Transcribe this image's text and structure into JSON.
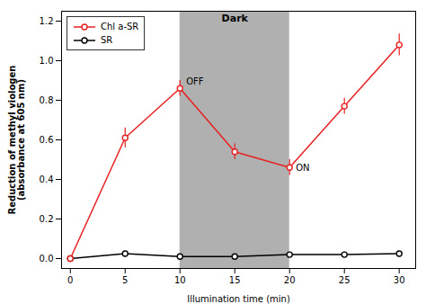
{
  "chart_data": {
    "type": "line",
    "x": [
      0,
      5,
      10,
      15,
      20,
      25,
      30
    ],
    "series": [
      {
        "name": "Chl a-SR",
        "color": "#e82020",
        "marker": "circle",
        "values": [
          0.0,
          0.61,
          0.86,
          0.54,
          0.46,
          0.77,
          1.08
        ],
        "errors": [
          0.01,
          0.05,
          0.04,
          0.04,
          0.04,
          0.04,
          0.055
        ]
      },
      {
        "name": "SR",
        "color": "#000000",
        "marker": "circle",
        "values": [
          0.0,
          0.025,
          0.01,
          0.01,
          0.02,
          0.02,
          0.025
        ],
        "errors": [
          0.005,
          0.008,
          0.005,
          0.005,
          0.006,
          0.005,
          0.008
        ]
      }
    ],
    "shaded_regions": [
      {
        "x_start": 10,
        "x_end": 20,
        "label": "Dark",
        "color": "#b0b0b0"
      }
    ],
    "annotations": [
      {
        "text": "OFF",
        "x": 10,
        "y": 0.86
      },
      {
        "text": "ON",
        "x": 20,
        "y": 0.46
      }
    ],
    "xlabel": "Illumination time (min)",
    "ylabel": "Reduction of methyl viologen\n(absorbance at 605 nm)",
    "xlim": [
      -0.8,
      31.5
    ],
    "ylim": [
      -0.05,
      1.25
    ],
    "xticks": [
      0,
      5,
      10,
      15,
      20,
      25,
      30
    ],
    "yticks": [
      {
        "value": 0.0,
        "label": "0.0"
      },
      0.2,
      0.4,
      0.6,
      0.8,
      {
        "value": 1.0,
        "label": "1.0"
      },
      1.2
    ],
    "grid": false,
    "legend": "upper left"
  }
}
